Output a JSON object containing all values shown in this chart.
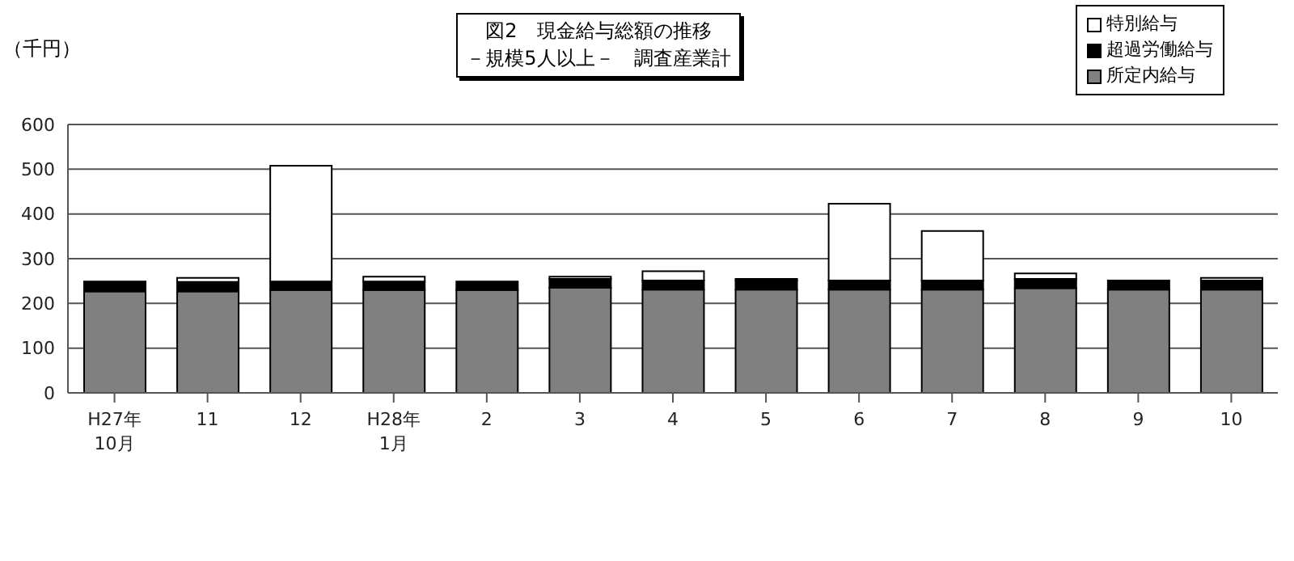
{
  "chart_data": {
    "type": "bar",
    "title": "図2　現金給与総額の推移",
    "subtitle": "－規模5人以上－　調査産業計",
    "ylabel": "（千円）",
    "categories": [
      "H27年\n10月",
      "11",
      "12",
      "H28年\n1月",
      "2",
      "3",
      "4",
      "5",
      "6",
      "7",
      "8",
      "9",
      "10"
    ],
    "stacked": true,
    "series": [
      {
        "name": "所定内給与",
        "color": "#808080",
        "values": [
          227,
          227,
          230,
          230,
          230,
          235,
          231,
          231,
          231,
          231,
          234,
          231,
          231
        ]
      },
      {
        "name": "超過労働給与",
        "color": "#000000",
        "values": [
          22,
          21,
          19,
          19,
          19,
          20,
          20,
          20,
          20,
          20,
          21,
          20,
          20
        ]
      },
      {
        "name": "特別給与",
        "color": "#ffffff",
        "values": [
          0,
          9,
          259,
          11,
          0,
          5,
          21,
          4,
          172,
          111,
          12,
          0,
          6
        ]
      }
    ],
    "ylim": [
      0,
      600
    ],
    "yticks": [
      0,
      100,
      200,
      300,
      400,
      500,
      600
    ],
    "grid": "y",
    "legend": "top right"
  }
}
